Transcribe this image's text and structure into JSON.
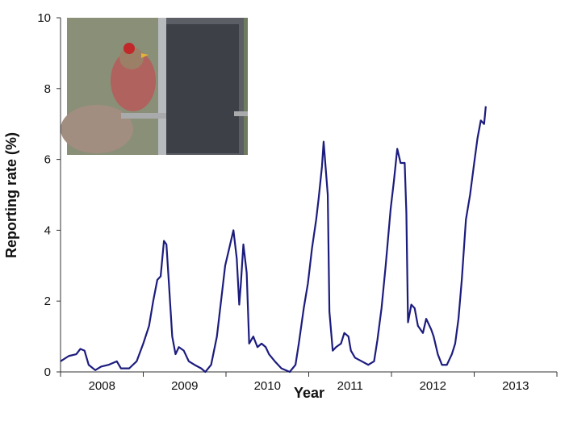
{
  "chart_data": {
    "type": "line",
    "x_label": "Year",
    "y_label": "Reporting rate (%)",
    "xlim": [
      2008,
      2014
    ],
    "ylim": [
      0,
      10
    ],
    "yticks": [
      0,
      2,
      4,
      6,
      8,
      10
    ],
    "xticks": [
      {
        "value": 2008.5,
        "label": "2008"
      },
      {
        "value": 2009.5,
        "label": "2009"
      },
      {
        "value": 2010.5,
        "label": "2010"
      },
      {
        "value": 2011.5,
        "label": "2011"
      },
      {
        "value": 2012.5,
        "label": "2012"
      },
      {
        "value": 2013.5,
        "label": "2013"
      }
    ],
    "grid": false,
    "series": [
      {
        "color": "#1c1c7e",
        "x": [
          2008.0,
          2008.1,
          2008.19,
          2008.24,
          2008.29,
          2008.34,
          2008.42,
          2008.49,
          2008.58,
          2008.68,
          2008.73,
          2008.83,
          2008.92,
          2009.0,
          2009.07,
          2009.12,
          2009.17,
          2009.21,
          2009.25,
          2009.28,
          2009.31,
          2009.35,
          2009.39,
          2009.43,
          2009.49,
          2009.55,
          2009.62,
          2009.7,
          2009.75,
          2009.82,
          2009.89,
          2009.94,
          2009.99,
          2010.04,
          2010.09,
          2010.13,
          2010.16,
          2010.18,
          2010.21,
          2010.25,
          2010.28,
          2010.33,
          2010.38,
          2010.43,
          2010.48,
          2010.52,
          2010.59,
          2010.67,
          2010.77,
          2010.84,
          2010.88,
          2010.94,
          2010.99,
          2011.04,
          2011.09,
          2011.12,
          2011.16,
          2011.18,
          2011.2,
          2011.23,
          2011.25,
          2011.29,
          2011.33,
          2011.39,
          2011.43,
          2011.48,
          2011.51,
          2011.56,
          2011.64,
          2011.72,
          2011.79,
          2011.83,
          2011.88,
          2011.93,
          2011.99,
          2012.03,
          2012.07,
          2012.11,
          2012.16,
          2012.18,
          2012.2,
          2012.24,
          2012.28,
          2012.32,
          2012.38,
          2012.42,
          2012.48,
          2012.51,
          2012.56,
          2012.61,
          2012.67,
          2012.73,
          2012.77,
          2012.81,
          2012.85,
          2012.9,
          2012.95,
          2013.0,
          2013.04,
          2013.08,
          2013.12,
          2013.14
        ],
        "values": [
          0.3,
          0.45,
          0.5,
          0.65,
          0.6,
          0.2,
          0.05,
          0.15,
          0.2,
          0.3,
          0.1,
          0.1,
          0.3,
          0.8,
          1.3,
          2.0,
          2.6,
          2.7,
          3.7,
          3.6,
          2.5,
          1.0,
          0.5,
          0.7,
          0.6,
          0.3,
          0.2,
          0.1,
          0.0,
          0.2,
          1.0,
          2.0,
          3.0,
          3.5,
          4.0,
          3.2,
          1.9,
          2.5,
          3.6,
          2.8,
          0.8,
          1.0,
          0.7,
          0.8,
          0.7,
          0.5,
          0.3,
          0.1,
          0.0,
          0.2,
          0.8,
          1.8,
          2.5,
          3.5,
          4.3,
          4.9,
          5.8,
          6.5,
          5.9,
          5.0,
          1.7,
          0.6,
          0.7,
          0.8,
          1.1,
          1.0,
          0.6,
          0.4,
          0.3,
          0.2,
          0.3,
          0.9,
          1.8,
          3.0,
          4.6,
          5.4,
          6.3,
          5.9,
          5.9,
          4.5,
          1.4,
          1.9,
          1.8,
          1.3,
          1.1,
          1.5,
          1.2,
          1.0,
          0.5,
          0.2,
          0.2,
          0.5,
          0.8,
          1.5,
          2.6,
          4.3,
          5.0,
          5.9,
          6.6,
          7.1,
          7.0,
          7.5
        ]
      }
    ]
  }
}
